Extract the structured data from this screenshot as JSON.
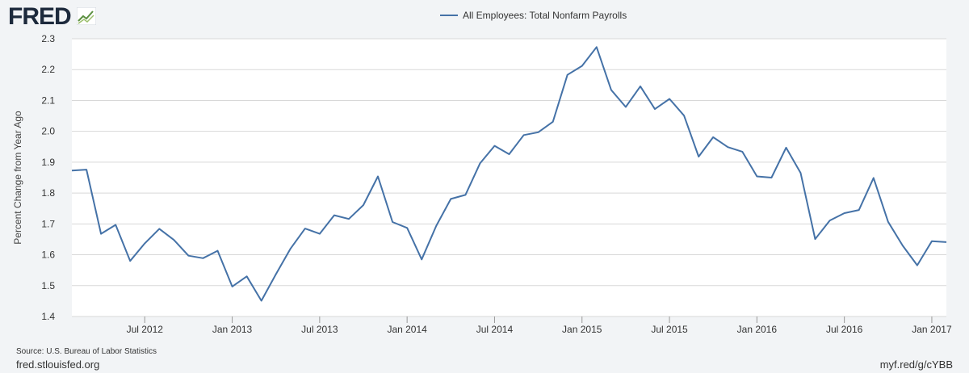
{
  "header": {
    "logo_text": "FRED",
    "logo_icon": "fred-trend-icon"
  },
  "footer": {
    "source": "Source: U.S. Bureau of Labor Statistics",
    "site": "fred.stlouisfed.org",
    "shortlink": "myf.red/g/cYBB"
  },
  "colors": {
    "line": "#4572a7",
    "plot_bg": "#ffffff",
    "page_bg": "#f2f4f6",
    "grid": "#d8d8d8"
  },
  "chart_data": {
    "type": "line",
    "title": "",
    "xlabel": "",
    "ylabel": "Percent Change from Year Ago",
    "ylim": [
      1.4,
      2.3
    ],
    "yticks": [
      "1.4",
      "1.5",
      "1.6",
      "1.7",
      "1.8",
      "1.9",
      "2.0",
      "2.1",
      "2.2",
      "2.3"
    ],
    "xticks": [
      {
        "label": "Jul 2012",
        "date": "2012-07"
      },
      {
        "label": "Jan 2013",
        "date": "2013-01"
      },
      {
        "label": "Jul 2013",
        "date": "2013-07"
      },
      {
        "label": "Jan 2014",
        "date": "2014-01"
      },
      {
        "label": "Jul 2014",
        "date": "2014-07"
      },
      {
        "label": "Jan 2015",
        "date": "2015-01"
      },
      {
        "label": "Jul 2015",
        "date": "2015-07"
      },
      {
        "label": "Jan 2016",
        "date": "2016-01"
      },
      {
        "label": "Jul 2016",
        "date": "2016-07"
      },
      {
        "label": "Jan 2017",
        "date": "2017-01"
      }
    ],
    "grid": true,
    "legend_position": "top-center",
    "series": [
      {
        "name": "All Employees: Total Nonfarm Payrolls",
        "x": [
          "2012-02",
          "2012-03",
          "2012-04",
          "2012-05",
          "2012-06",
          "2012-07",
          "2012-08",
          "2012-09",
          "2012-10",
          "2012-11",
          "2012-12",
          "2013-01",
          "2013-02",
          "2013-03",
          "2013-04",
          "2013-05",
          "2013-06",
          "2013-07",
          "2013-08",
          "2013-09",
          "2013-10",
          "2013-11",
          "2013-12",
          "2014-01",
          "2014-02",
          "2014-03",
          "2014-04",
          "2014-05",
          "2014-06",
          "2014-07",
          "2014-08",
          "2014-09",
          "2014-10",
          "2014-11",
          "2014-12",
          "2015-01",
          "2015-02",
          "2015-03",
          "2015-04",
          "2015-05",
          "2015-06",
          "2015-07",
          "2015-08",
          "2015-09",
          "2015-10",
          "2015-11",
          "2015-12",
          "2016-01",
          "2016-02",
          "2016-03",
          "2016-04",
          "2016-05",
          "2016-06",
          "2016-07",
          "2016-08",
          "2016-09",
          "2016-10",
          "2016-11",
          "2016-12",
          "2017-01",
          "2017-02"
        ],
        "values": [
          1.873,
          1.876,
          1.668,
          1.697,
          1.58,
          1.637,
          1.684,
          1.648,
          1.597,
          1.589,
          1.613,
          1.497,
          1.53,
          1.451,
          1.537,
          1.62,
          1.685,
          1.668,
          1.728,
          1.716,
          1.761,
          1.854,
          1.706,
          1.687,
          1.585,
          1.694,
          1.781,
          1.794,
          1.896,
          1.953,
          1.926,
          1.988,
          1.997,
          2.031,
          2.183,
          2.212,
          2.273,
          2.134,
          2.079,
          2.146,
          2.072,
          2.105,
          2.051,
          1.918,
          1.981,
          1.949,
          1.934,
          1.854,
          1.85,
          1.947,
          1.865,
          1.651,
          1.711,
          1.735,
          1.745,
          1.849,
          1.707,
          1.63,
          1.566,
          1.644,
          1.641
        ]
      }
    ]
  }
}
